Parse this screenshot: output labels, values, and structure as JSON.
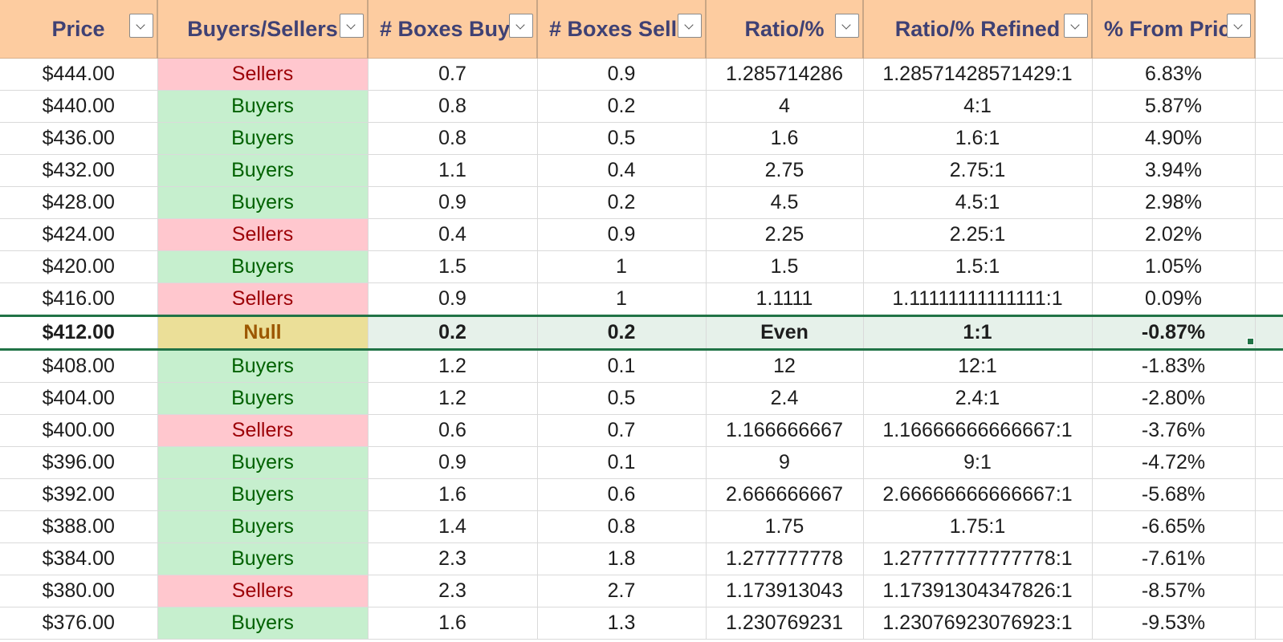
{
  "headers": [
    {
      "label": "Price",
      "filter_icon": "chevron-down-icon"
    },
    {
      "label": "Buyers/Sellers",
      "filter_icon": "chevron-down-icon"
    },
    {
      "label": "# Boxes Buye",
      "filter_icon": "chevron-down-icon"
    },
    {
      "label": "# Boxes Selle",
      "filter_icon": "chevron-down-icon"
    },
    {
      "label": "Ratio/%",
      "filter_icon": "chevron-down-icon"
    },
    {
      "label": "Ratio/% Refined",
      "filter_icon": "chevron-down-icon"
    },
    {
      "label": "% From Pric",
      "filter_icon": "chevron-down-icon"
    }
  ],
  "colors": {
    "header_bg": "#fdcca0",
    "header_text": "#3f4174",
    "sellers_bg": "#ffc7ce",
    "sellers_text": "#9c0006",
    "buyers_bg": "#c6efce",
    "buyers_text": "#006100",
    "null_bg": "#ebdf98",
    "null_text": "#9c5700",
    "selection_border": "#217346"
  },
  "rows": [
    {
      "price": "$444.00",
      "side": "Sellers",
      "bought": "0.7",
      "sold": "0.9",
      "ratio": "1.285714286",
      "refined": "1.28571428571429:1",
      "pct": "6.83%"
    },
    {
      "price": "$440.00",
      "side": "Buyers",
      "bought": "0.8",
      "sold": "0.2",
      "ratio": "4",
      "refined": "4:1",
      "pct": "5.87%"
    },
    {
      "price": "$436.00",
      "side": "Buyers",
      "bought": "0.8",
      "sold": "0.5",
      "ratio": "1.6",
      "refined": "1.6:1",
      "pct": "4.90%"
    },
    {
      "price": "$432.00",
      "side": "Buyers",
      "bought": "1.1",
      "sold": "0.4",
      "ratio": "2.75",
      "refined": "2.75:1",
      "pct": "3.94%"
    },
    {
      "price": "$428.00",
      "side": "Buyers",
      "bought": "0.9",
      "sold": "0.2",
      "ratio": "4.5",
      "refined": "4.5:1",
      "pct": "2.98%"
    },
    {
      "price": "$424.00",
      "side": "Sellers",
      "bought": "0.4",
      "sold": "0.9",
      "ratio": "2.25",
      "refined": "2.25:1",
      "pct": "2.02%"
    },
    {
      "price": "$420.00",
      "side": "Buyers",
      "bought": "1.5",
      "sold": "1",
      "ratio": "1.5",
      "refined": "1.5:1",
      "pct": "1.05%"
    },
    {
      "price": "$416.00",
      "side": "Sellers",
      "bought": "0.9",
      "sold": "1",
      "ratio": "1.1111",
      "refined": "1.11111111111111:1",
      "pct": "0.09%"
    },
    {
      "price": "$412.00",
      "side": "Null",
      "bought": "0.2",
      "sold": "0.2",
      "ratio": "Even",
      "refined": "1:1",
      "pct": "-0.87%",
      "selected": true
    },
    {
      "price": "$408.00",
      "side": "Buyers",
      "bought": "1.2",
      "sold": "0.1",
      "ratio": "12",
      "refined": "12:1",
      "pct": "-1.83%"
    },
    {
      "price": "$404.00",
      "side": "Buyers",
      "bought": "1.2",
      "sold": "0.5",
      "ratio": "2.4",
      "refined": "2.4:1",
      "pct": "-2.80%"
    },
    {
      "price": "$400.00",
      "side": "Sellers",
      "bought": "0.6",
      "sold": "0.7",
      "ratio": "1.166666667",
      "refined": "1.16666666666667:1",
      "pct": "-3.76%"
    },
    {
      "price": "$396.00",
      "side": "Buyers",
      "bought": "0.9",
      "sold": "0.1",
      "ratio": "9",
      "refined": "9:1",
      "pct": "-4.72%"
    },
    {
      "price": "$392.00",
      "side": "Buyers",
      "bought": "1.6",
      "sold": "0.6",
      "ratio": "2.666666667",
      "refined": "2.66666666666667:1",
      "pct": "-5.68%"
    },
    {
      "price": "$388.00",
      "side": "Buyers",
      "bought": "1.4",
      "sold": "0.8",
      "ratio": "1.75",
      "refined": "1.75:1",
      "pct": "-6.65%"
    },
    {
      "price": "$384.00",
      "side": "Buyers",
      "bought": "2.3",
      "sold": "1.8",
      "ratio": "1.277777778",
      "refined": "1.27777777777778:1",
      "pct": "-7.61%"
    },
    {
      "price": "$380.00",
      "side": "Sellers",
      "bought": "2.3",
      "sold": "2.7",
      "ratio": "1.173913043",
      "refined": "1.17391304347826:1",
      "pct": "-8.57%"
    },
    {
      "price": "$376.00",
      "side": "Buyers",
      "bought": "1.6",
      "sold": "1.3",
      "ratio": "1.230769231",
      "refined": "1.23076923076923:1",
      "pct": "-9.53%"
    }
  ]
}
